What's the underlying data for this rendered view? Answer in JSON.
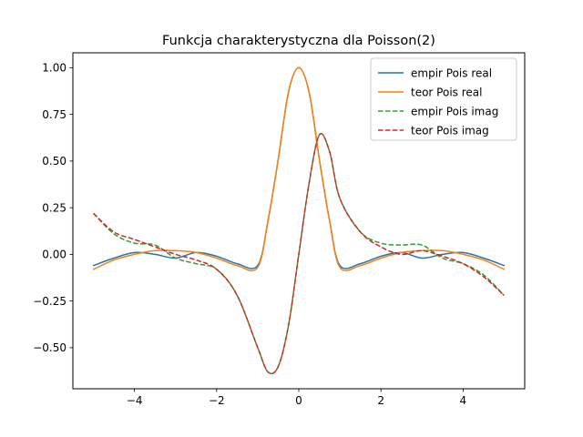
{
  "chart_data": {
    "type": "line",
    "title": "Funkcja charakterystyczna dla Poisson(2)",
    "xlabel": "",
    "ylabel": "",
    "xlim": [
      -5.5,
      5.5
    ],
    "ylim": [
      -0.72,
      1.08
    ],
    "x_ticks": [
      {
        "value": -4,
        "label": "−4"
      },
      {
        "value": -2,
        "label": "−2"
      },
      {
        "value": 0,
        "label": "0"
      },
      {
        "value": 2,
        "label": "2"
      },
      {
        "value": 4,
        "label": "4"
      }
    ],
    "y_ticks": [
      {
        "value": -0.5,
        "label": "−0.50"
      },
      {
        "value": -0.25,
        "label": "−0.25"
      },
      {
        "value": 0.0,
        "label": "0.00"
      },
      {
        "value": 0.25,
        "label": "0.25"
      },
      {
        "value": 0.5,
        "label": "0.50"
      },
      {
        "value": 0.75,
        "label": "0.75"
      },
      {
        "value": 1.0,
        "label": "1.00"
      }
    ],
    "grid": false,
    "legend_position": "top-right",
    "x": [
      -5.0,
      -4.5,
      -4.0,
      -3.5,
      -3.0,
      -2.5,
      -2.0,
      -1.5,
      -1.0,
      -0.75,
      -0.5,
      -0.25,
      0.0,
      0.25,
      0.5,
      0.75,
      1.0,
      1.5,
      2.0,
      2.5,
      3.0,
      3.5,
      4.0,
      4.5,
      5.0
    ],
    "series": [
      {
        "name": "empir Pois real",
        "color": "#1f77b4",
        "dash": "solid",
        "values": [
          -0.06,
          -0.02,
          0.01,
          0.0,
          -0.02,
          0.01,
          -0.01,
          -0.05,
          -0.06,
          0.18,
          0.51,
          0.87,
          1.0,
          0.87,
          0.51,
          0.18,
          -0.06,
          -0.05,
          -0.01,
          0.01,
          -0.02,
          0.0,
          0.01,
          -0.02,
          -0.06
        ]
      },
      {
        "name": "teor Pois real",
        "color": "#ff7f0e",
        "dash": "solid",
        "values": [
          -0.08,
          -0.03,
          0.0,
          0.02,
          0.02,
          0.01,
          -0.02,
          -0.06,
          -0.07,
          0.18,
          0.51,
          0.87,
          1.0,
          0.87,
          0.51,
          0.18,
          -0.07,
          -0.06,
          -0.02,
          0.01,
          0.02,
          0.02,
          0.0,
          -0.03,
          -0.08
        ]
      },
      {
        "name": "empir Pois imag",
        "color": "#2ca02c",
        "dash": "dashed",
        "values": [
          0.22,
          0.11,
          0.06,
          0.05,
          -0.02,
          -0.05,
          -0.08,
          -0.22,
          -0.5,
          -0.63,
          -0.6,
          -0.38,
          0.0,
          0.38,
          0.64,
          0.55,
          0.3,
          0.12,
          0.06,
          0.05,
          0.05,
          -0.02,
          -0.05,
          -0.11,
          -0.22
        ]
      },
      {
        "name": "teor Pois imag",
        "color": "#d62728",
        "dash": "dashed",
        "values": [
          0.22,
          0.12,
          0.08,
          0.04,
          0.0,
          -0.03,
          -0.08,
          -0.22,
          -0.5,
          -0.63,
          -0.6,
          -0.38,
          0.0,
          0.38,
          0.64,
          0.55,
          0.3,
          0.12,
          0.04,
          0.0,
          0.02,
          -0.01,
          -0.05,
          -0.12,
          -0.22
        ]
      }
    ]
  }
}
